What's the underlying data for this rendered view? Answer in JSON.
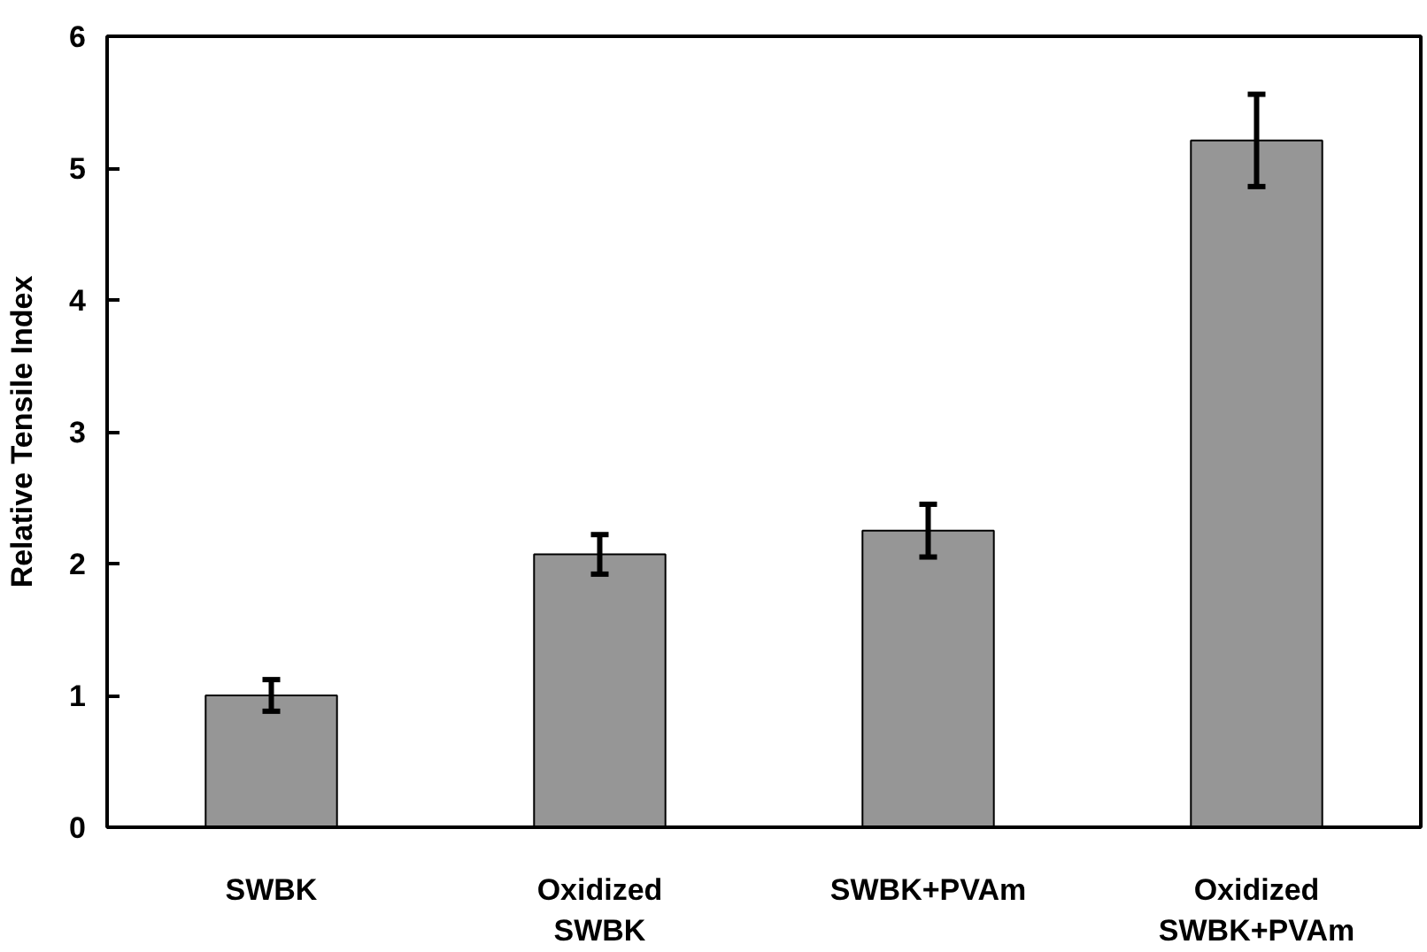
{
  "chart_data": {
    "type": "bar",
    "ylabel": "Relative Tensile Index",
    "categories": [
      "SWBK",
      "Oxidized\nSWBK",
      "SWBK+PVAm",
      "Oxidized\nSWBK+PVAm"
    ],
    "values": [
      1.0,
      2.07,
      2.25,
      5.21
    ],
    "errors": [
      0.12,
      0.15,
      0.2,
      0.35
    ],
    "color": "#969696",
    "ylim": [
      0,
      6
    ],
    "yticks": [
      0,
      1,
      2,
      3,
      4,
      5,
      6
    ],
    "grid": false
  }
}
